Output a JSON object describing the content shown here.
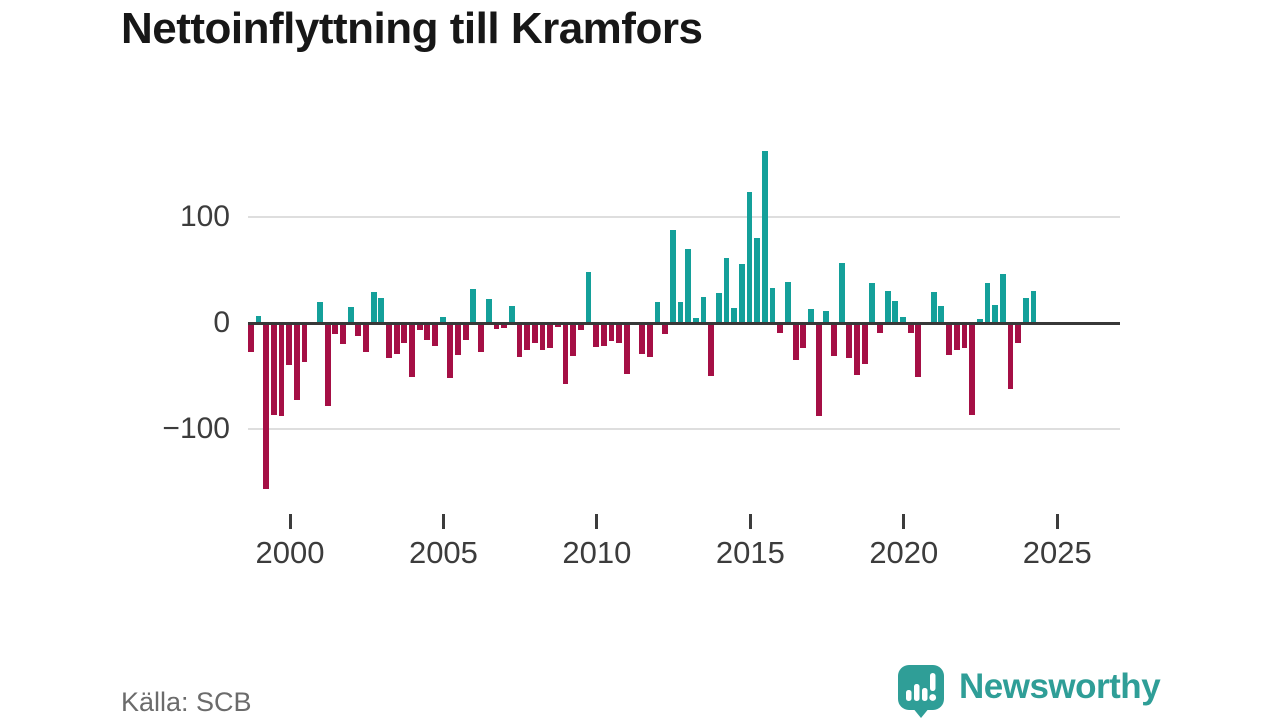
{
  "title": "Nettoinflyttning till Kramfors",
  "source": "Källa: SCB",
  "branding": {
    "name": "Newsworthy",
    "color": "#2f9e97"
  },
  "colors": {
    "positive": "#14a09a",
    "negative": "#a50f45",
    "zero_line": "#383838",
    "grid": "#dedede",
    "axis_text": "#3c3c3c",
    "title_text": "#171717",
    "source_text": "#6b6b6b"
  },
  "chart_data": {
    "type": "bar",
    "title": "Nettoinflyttning till Kramfors",
    "frequency": "quarterly",
    "x_ticks": [
      2000,
      2005,
      2010,
      2015,
      2020,
      2025
    ],
    "x_range": [
      2000,
      2025.75
    ],
    "y_ticks": [
      100,
      0,
      -100
    ],
    "y_tick_labels": [
      "100",
      "0",
      "−100"
    ],
    "ylim": [
      -180,
      180
    ],
    "grid": "horizontal",
    "legend": "none",
    "values": [
      -27,
      7,
      -157,
      -87,
      -88,
      -40,
      -73,
      -37,
      0,
      20,
      -78,
      -10,
      -20,
      15,
      -12,
      -27,
      29,
      24,
      -33,
      -29,
      -19,
      -51,
      -7,
      -16,
      -22,
      6,
      -52,
      -30,
      -16,
      32,
      -27,
      23,
      -6,
      -5,
      16,
      -32,
      -25,
      -19,
      -25,
      -24,
      -4,
      -58,
      -31,
      -7,
      48,
      -23,
      -22,
      -17,
      -19,
      -48,
      -2,
      -29,
      -32,
      20,
      -10,
      88,
      20,
      70,
      5,
      25,
      -50,
      28,
      61,
      14,
      56,
      124,
      80,
      162,
      33,
      -9,
      39,
      -35,
      -24,
      13,
      -88,
      11,
      -31,
      57,
      -33,
      -49,
      -39,
      38,
      -9,
      30,
      21,
      6,
      -9,
      -51,
      -2,
      29,
      16,
      -30,
      -25,
      -24,
      -87,
      4,
      38,
      17,
      46,
      -62,
      -19,
      24,
      30
    ]
  }
}
